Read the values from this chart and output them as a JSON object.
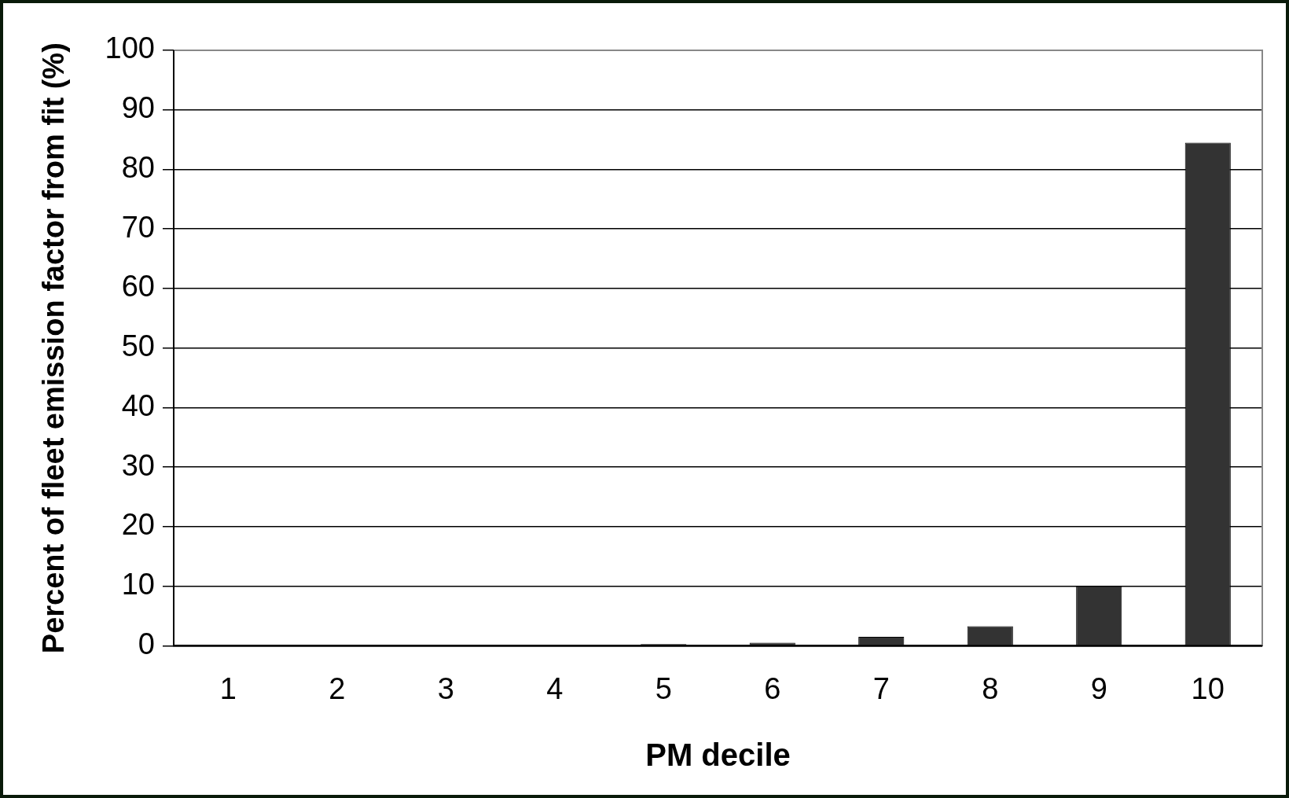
{
  "chart_data": {
    "type": "bar",
    "xlabel": "PM decile",
    "ylabel": "Percent of fleet emission factor from fit (%)",
    "categories": [
      "1",
      "2",
      "3",
      "4",
      "5",
      "6",
      "7",
      "8",
      "9",
      "10"
    ],
    "values": [
      0,
      0,
      0,
      0,
      0.3,
      0.5,
      1.5,
      3.3,
      10,
      84.5
    ],
    "color": "#333333",
    "ylim": [
      0,
      100
    ],
    "yticks": [
      0,
      10,
      20,
      30,
      40,
      50,
      60,
      70,
      80,
      90,
      100
    ],
    "grid": "y"
  }
}
